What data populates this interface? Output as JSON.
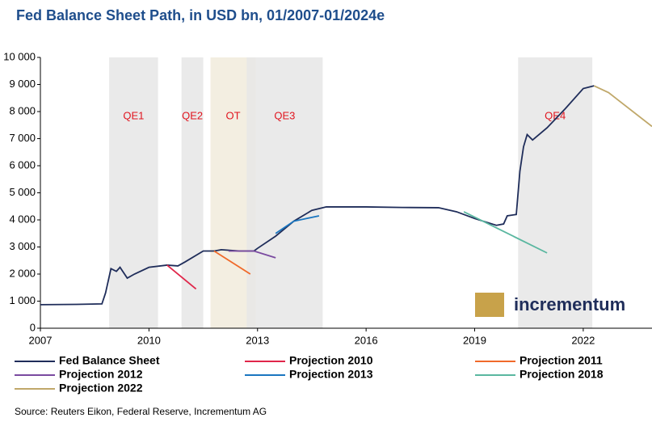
{
  "chart_data": {
    "type": "line",
    "title": "Fed Balance Sheet Path, in USD bn, 01/2007-01/2024e",
    "source": "Source: Reuters Eikon, Federal Reserve, Incrementum AG",
    "logo": "incrementum",
    "xlim": [
      2007,
      2023.9
    ],
    "xticks": [
      2007,
      2010,
      2013,
      2016,
      2019,
      2022
    ],
    "ylim": [
      0,
      10000
    ],
    "yticks": [
      0,
      {
        "value": 1000,
        "label": "1 000"
      },
      {
        "value": 2000,
        "label": "2 000"
      },
      {
        "value": 3000,
        "label": "3 000"
      },
      {
        "value": 4000,
        "label": "4 000"
      },
      {
        "value": 5000,
        "label": "5 000"
      },
      {
        "value": 6000,
        "label": "6 000"
      },
      {
        "value": 7000,
        "label": "7 000"
      },
      {
        "value": 8000,
        "label": "8 000"
      },
      {
        "value": 9000,
        "label": "9 000"
      },
      {
        "value": 10000,
        "label": "10 000"
      }
    ],
    "regions": [
      {
        "label": "QE1",
        "start": 2008.9,
        "end": 2010.25,
        "color": "#e6e6e6"
      },
      {
        "label": "QE2",
        "start": 2010.9,
        "end": 2011.5,
        "color": "#e6e6e6"
      },
      {
        "label": "OT",
        "start": 2011.7,
        "end": 2012.95,
        "color": "#f1ebdc"
      },
      {
        "label": "QE3",
        "start": 2012.7,
        "end": 2014.8,
        "color": "#e6e6e6"
      },
      {
        "label": "QE4",
        "start": 2020.2,
        "end": 2022.25,
        "color": "#e6e6e6"
      }
    ],
    "series": [
      {
        "name": "Fed Balance Sheet",
        "color": "#1f2d5a",
        "x": [
          2007,
          2008,
          2008.7,
          2008.8,
          2008.95,
          2009.1,
          2009.2,
          2009.4,
          2009.6,
          2010,
          2010.5,
          2010.8,
          2011,
          2011.5,
          2011.8,
          2012,
          2012.5,
          2012.9,
          2013,
          2013.5,
          2014,
          2014.5,
          2014.9,
          2016,
          2017,
          2018,
          2018.5,
          2019,
          2019.6,
          2019.8,
          2019.9,
          2020.15,
          2020.25,
          2020.35,
          2020.45,
          2020.6,
          2021,
          2021.5,
          2022,
          2022.3
        ],
        "values": [
          870,
          880,
          900,
          1300,
          2200,
          2100,
          2250,
          1850,
          2000,
          2250,
          2330,
          2300,
          2450,
          2850,
          2850,
          2900,
          2850,
          2850,
          2950,
          3400,
          3950,
          4350,
          4480,
          4480,
          4460,
          4450,
          4300,
          4050,
          3800,
          3850,
          4150,
          4200,
          5800,
          6700,
          7150,
          6950,
          7400,
          8100,
          8850,
          8950
        ]
      },
      {
        "name": "Projection 2010",
        "color": "#e0264a",
        "x": [
          2010.5,
          2011.3
        ],
        "values": [
          2330,
          1450
        ]
      },
      {
        "name": "Projection 2011",
        "color": "#f06a2a",
        "x": [
          2011.8,
          2012.8
        ],
        "values": [
          2850,
          2000
        ]
      },
      {
        "name": "Projection 2012",
        "color": "#7a4aa0",
        "x": [
          2012.2,
          2012.9,
          2013.5
        ],
        "values": [
          2850,
          2850,
          2600
        ]
      },
      {
        "name": "Projection 2013",
        "color": "#1a76c0",
        "x": [
          2013.5,
          2014,
          2014.7
        ],
        "values": [
          3500,
          3950,
          4150
        ]
      },
      {
        "name": "Projection 2018",
        "color": "#5ab7a0",
        "x": [
          2018.7,
          2021
        ],
        "values": [
          4300,
          2780
        ]
      },
      {
        "name": "Projection 2022",
        "color": "#c0a86a",
        "x": [
          2022.3,
          2022.7,
          2023.9
        ],
        "values": [
          8950,
          8700,
          7450
        ]
      }
    ]
  }
}
